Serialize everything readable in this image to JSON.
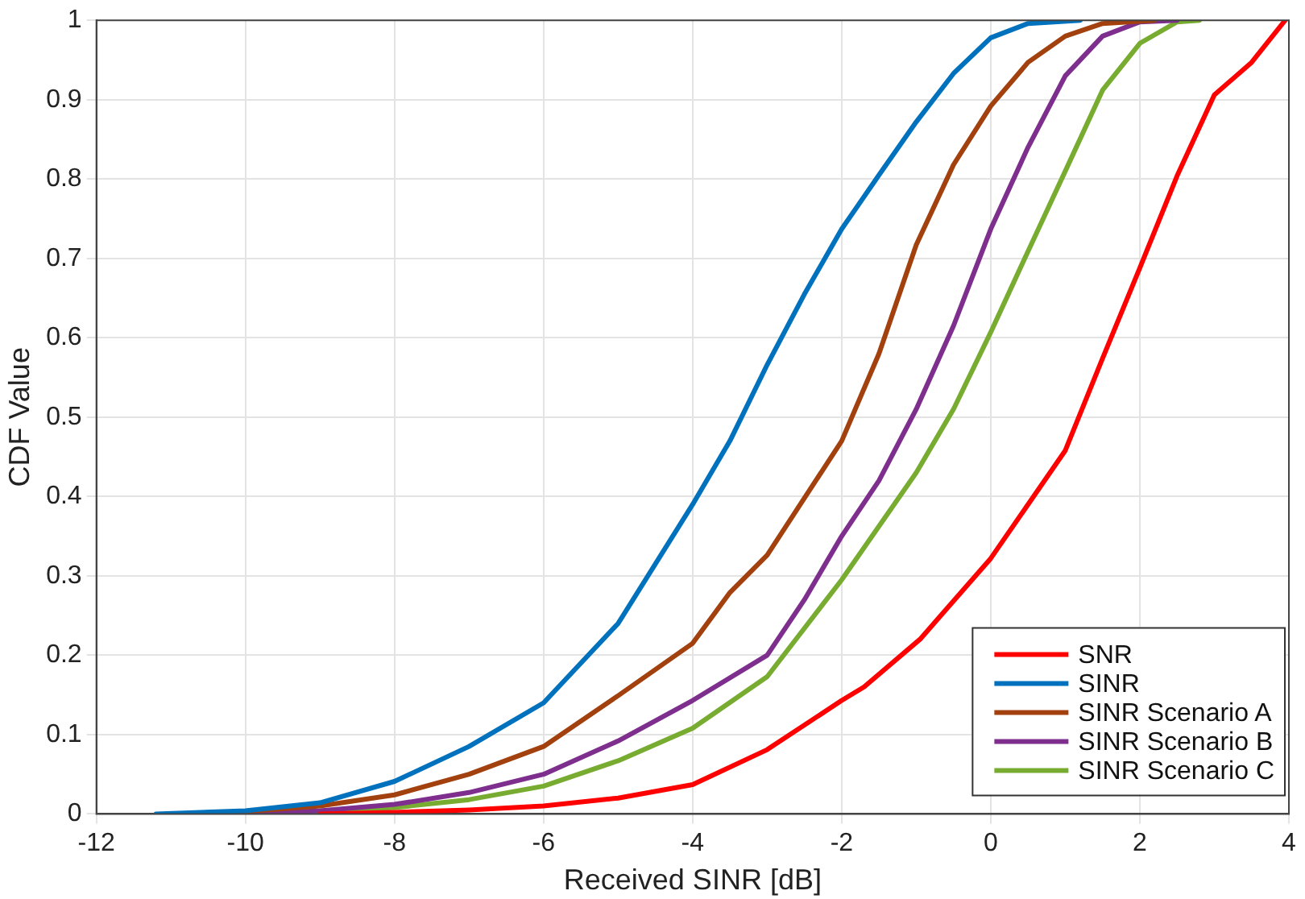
{
  "chart_data": {
    "type": "line",
    "xlabel": "Received SINR [dB]",
    "ylabel": "CDF Value",
    "xlim": [
      -12,
      4
    ],
    "xticks": [
      -12,
      -10,
      -8,
      -6,
      -4,
      -2,
      0,
      2,
      4
    ],
    "ylim": [
      0,
      1
    ],
    "yticks": [
      0,
      0.1,
      0.2,
      0.3,
      0.4,
      0.5,
      0.6,
      0.7,
      0.8,
      0.9,
      1
    ],
    "grid": true,
    "legend": "bottom right",
    "marker": "none",
    "line_style": "solid",
    "series": [
      {
        "name": "SNR",
        "color": "#ff0000",
        "x": [
          -9,
          -8,
          -7,
          -6,
          -5,
          -4,
          -3,
          -2,
          -1.7,
          -0.95,
          0,
          0.5,
          1,
          1.5,
          2,
          2.5,
          3,
          3.5,
          3.95
        ],
        "values": [
          0,
          0.002,
          0.005,
          0.01,
          0.02,
          0.037,
          0.081,
          0.143,
          0.16,
          0.22,
          0.322,
          0.39,
          0.458,
          0.574,
          0.688,
          0.804,
          0.906,
          0.947,
          1
        ]
      },
      {
        "name": "SINR",
        "color": "#0072bd",
        "x": [
          -11.2,
          -10,
          -9,
          -8,
          -7,
          -6,
          -5,
          -4,
          -3.5,
          -3,
          -2.5,
          -2,
          -1.5,
          -1,
          -0.5,
          0,
          0.5,
          1.2
        ],
        "values": [
          0,
          0.004,
          0.014,
          0.041,
          0.085,
          0.14,
          0.24,
          0.39,
          0.47,
          0.566,
          0.655,
          0.737,
          0.805,
          0.872,
          0.933,
          0.978,
          0.996,
          1
        ]
      },
      {
        "name": "SINR Scenario A",
        "color": "#a2400e",
        "x": [
          -10.5,
          -10,
          -9,
          -8,
          -7,
          -6,
          -5,
          -4,
          -3.5,
          -3,
          -2,
          -1.5,
          -1,
          -0.5,
          0,
          0.5,
          1,
          1.5,
          2.2
        ],
        "values": [
          0,
          0.003,
          0.01,
          0.024,
          0.05,
          0.085,
          0.149,
          0.215,
          0.279,
          0.326,
          0.47,
          0.58,
          0.717,
          0.818,
          0.892,
          0.947,
          0.98,
          0.996,
          1
        ]
      },
      {
        "name": "SINR Scenario B",
        "color": "#7e2f8e",
        "x": [
          -10,
          -9,
          -8,
          -7,
          -6,
          -5,
          -4,
          -3,
          -2.5,
          -2,
          -1.5,
          -1,
          -0.5,
          0,
          0.5,
          1,
          1.5,
          2,
          2.5
        ],
        "values": [
          0,
          0.004,
          0.012,
          0.027,
          0.05,
          0.092,
          0.143,
          0.2,
          0.27,
          0.35,
          0.42,
          0.51,
          0.615,
          0.737,
          0.84,
          0.93,
          0.98,
          0.998,
          1
        ]
      },
      {
        "name": "SINR Scenario C",
        "color": "#77ac30",
        "x": [
          -9.5,
          -9,
          -8,
          -7,
          -6,
          -5,
          -4,
          -3,
          -2,
          -1,
          -0.5,
          0,
          0.5,
          1,
          1.5,
          2,
          2.5,
          2.8
        ],
        "values": [
          0,
          0.002,
          0.008,
          0.018,
          0.035,
          0.067,
          0.108,
          0.173,
          0.295,
          0.43,
          0.51,
          0.607,
          0.709,
          0.81,
          0.912,
          0.971,
          0.998,
          1
        ]
      }
    ]
  }
}
